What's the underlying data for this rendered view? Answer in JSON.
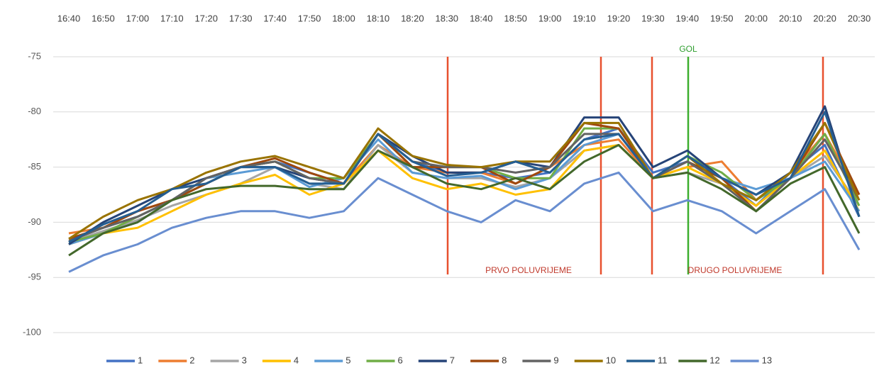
{
  "chart_data": {
    "type": "line",
    "categories": [
      "16:40",
      "16:50",
      "17:00",
      "17:10",
      "17:20",
      "17:30",
      "17:40",
      "17:50",
      "18:00",
      "18:10",
      "18:20",
      "18:30",
      "18:40",
      "18:50",
      "19:00",
      "19:10",
      "19:20",
      "19:30",
      "19:40",
      "19:50",
      "20:00",
      "20:10",
      "20:20",
      "20:30"
    ],
    "ylim": [
      -100,
      -75
    ],
    "yticks": [
      -75,
      -80,
      -85,
      -90,
      -95,
      -100
    ],
    "grid": true,
    "legend": "bottom",
    "annotations": {
      "first_half": "PRVO POLUVRIJEME",
      "second_half": "DRUGO POLUVRIJEME",
      "goal": "GOL"
    },
    "series": [
      {
        "name": "1",
        "color": "#4472c4",
        "values": [
          -91.5,
          -90.5,
          -89.5,
          -88,
          -86.5,
          -85,
          -84.5,
          -85.5,
          -86.5,
          -82,
          -84.5,
          -85.5,
          -85.5,
          -86,
          -85.5,
          -82.5,
          -81.5,
          -85.5,
          -84.5,
          -86,
          -88.5,
          -85.5,
          -83,
          -89.5
        ]
      },
      {
        "name": "2",
        "color": "#ed7d31",
        "values": [
          -91,
          -90.5,
          -89,
          -88,
          -86,
          -85,
          -84.5,
          -86,
          -86.5,
          -83,
          -85,
          -85.5,
          -85.5,
          -86.5,
          -85,
          -83,
          -82.5,
          -86,
          -85,
          -84.5,
          -88,
          -85.5,
          -82,
          -87.5
        ]
      },
      {
        "name": "3",
        "color": "#a5a5a5",
        "values": [
          -91.8,
          -90.8,
          -89.8,
          -88.5,
          -87.5,
          -86.5,
          -85,
          -86.5,
          -87,
          -83,
          -85.5,
          -86,
          -86,
          -86.8,
          -86,
          -83.5,
          -83,
          -86,
          -85.5,
          -86.5,
          -88.5,
          -86,
          -84,
          -88.5
        ]
      },
      {
        "name": "4",
        "color": "#ffc000",
        "values": [
          -92,
          -91,
          -90.5,
          -89,
          -87.5,
          -86.5,
          -85.7,
          -87.5,
          -86.5,
          -83.5,
          -86,
          -87,
          -86.5,
          -87.5,
          -87,
          -83.5,
          -83,
          -86,
          -85,
          -86.5,
          -88.5,
          -86,
          -83.5,
          -89
        ]
      },
      {
        "name": "5",
        "color": "#5b9bd5",
        "values": [
          -92,
          -91,
          -90,
          -88,
          -86,
          -85.5,
          -85,
          -86.8,
          -86,
          -82.5,
          -85.5,
          -86,
          -85.8,
          -87,
          -86,
          -83,
          -82,
          -86,
          -84.5,
          -86,
          -87,
          -86,
          -84.5,
          -89
        ]
      },
      {
        "name": "6",
        "color": "#70ad47",
        "values": [
          -91.8,
          -91,
          -89.5,
          -88,
          -86.5,
          -85,
          -84.5,
          -86,
          -86,
          -82,
          -85,
          -85,
          -85,
          -86,
          -86,
          -81.5,
          -81.5,
          -86,
          -84,
          -85.5,
          -88,
          -86,
          -82,
          -88.5
        ]
      },
      {
        "name": "7",
        "color": "#264478",
        "values": [
          -92,
          -90,
          -88.5,
          -87,
          -86,
          -85,
          -85,
          -86,
          -86.5,
          -82,
          -84,
          -85.5,
          -85.5,
          -84.5,
          -85,
          -80.5,
          -80.5,
          -85,
          -83.5,
          -86,
          -87.5,
          -85.5,
          -79.5,
          -89.5
        ]
      },
      {
        "name": "8",
        "color": "#9e480e",
        "values": [
          -91.5,
          -90.5,
          -89,
          -88,
          -86.5,
          -85,
          -84.2,
          -85.5,
          -86.5,
          -82,
          -85,
          -85,
          -85,
          -86.5,
          -85,
          -81,
          -81.5,
          -86,
          -84.5,
          -86,
          -89,
          -86,
          -81,
          -87.5
        ]
      },
      {
        "name": "9",
        "color": "#636363",
        "values": [
          -91.7,
          -90.5,
          -89.5,
          -88,
          -86,
          -85,
          -84.5,
          -86,
          -86.5,
          -82,
          -84.5,
          -85,
          -85,
          -85.5,
          -85,
          -82,
          -82,
          -86,
          -84.5,
          -86.5,
          -89,
          -86,
          -82.5,
          -88
        ]
      },
      {
        "name": "10",
        "color": "#997300",
        "values": [
          -91.5,
          -89.5,
          -88,
          -87,
          -85.5,
          -84.5,
          -84,
          -85,
          -86,
          -81.5,
          -84,
          -84.8,
          -85,
          -84.5,
          -84.5,
          -81,
          -81,
          -86,
          -84,
          -86.5,
          -88,
          -85.5,
          -81,
          -88
        ]
      },
      {
        "name": "11",
        "color": "#255e91",
        "values": [
          -91.8,
          -90.2,
          -89,
          -87,
          -86.5,
          -85,
          -85,
          -86.5,
          -86.5,
          -82,
          -84.5,
          -85.8,
          -85.5,
          -84.5,
          -85.5,
          -82.5,
          -82,
          -86,
          -84,
          -86,
          -87.5,
          -86,
          -80,
          -89.5
        ]
      },
      {
        "name": "12",
        "color": "#43682b",
        "values": [
          -93,
          -91,
          -90,
          -88,
          -87,
          -86.7,
          -86.7,
          -87,
          -87,
          -83.5,
          -85,
          -86.5,
          -87,
          -86,
          -87,
          -84.5,
          -83,
          -86,
          -85.5,
          -87,
          -89,
          -86.5,
          -85,
          -91
        ]
      },
      {
        "name": "13",
        "color": "#698ed0",
        "values": [
          -94.5,
          -93,
          -92,
          -90.5,
          -89.6,
          -89,
          -89,
          -89.6,
          -89,
          -86,
          -87.5,
          -89,
          -90,
          -88,
          -89,
          -86.5,
          -85.5,
          -89,
          -88,
          -89,
          -91,
          -89,
          -87,
          -92.5
        ]
      }
    ]
  }
}
